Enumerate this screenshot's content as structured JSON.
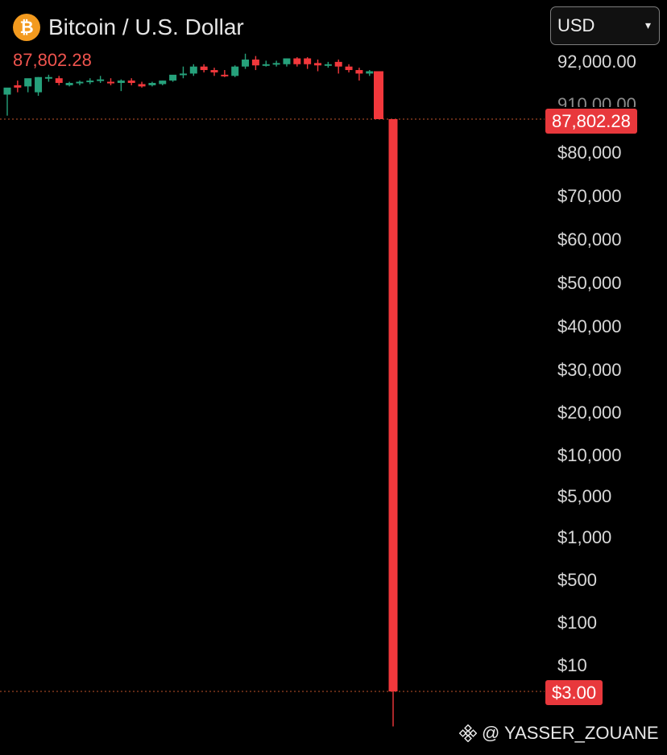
{
  "header": {
    "pair_name": "Bitcoin / U.S. Dollar",
    "last_price": "87,802.28",
    "coin_icon": "bitcoin-icon",
    "coin_symbol": "₿"
  },
  "currency_selector": {
    "value": "USD",
    "icon": "chevron-down-icon"
  },
  "price_axis": {
    "labels": [
      "92,000.00",
      "$80,000",
      "$70,000",
      "$60,000",
      "$50,000",
      "$40,000",
      "$30,000",
      "$20,000",
      "$10,000",
      "$5,000",
      "$1,000",
      "$500",
      "$100",
      "$10"
    ],
    "partial_label": "910,00.00"
  },
  "price_tags": {
    "current": "87,802.28",
    "low": "$3.00"
  },
  "watermark": {
    "text": "@ YASSER_ZOUANE",
    "icon": "binance-icon"
  },
  "colors": {
    "up": "#26a17b",
    "down": "#f2383c",
    "price_line": "#c2542d",
    "background": "#000000",
    "accent_coin": "#f39a1e"
  },
  "chart_data": {
    "type": "candlestick",
    "price_min": 87802.28,
    "crash_low": 3.0,
    "candles": [
      {
        "o": 89900,
        "h": 90200,
        "c": 90500,
        "l": 88100
      },
      {
        "o": 90700,
        "h": 91100,
        "c": 90500,
        "l": 90100
      },
      {
        "o": 90600,
        "h": 91200,
        "c": 91300,
        "l": 90100
      },
      {
        "o": 90100,
        "h": 91400,
        "c": 91400,
        "l": 89800
      },
      {
        "o": 91400,
        "h": 91600,
        "c": 91400,
        "l": 91000
      },
      {
        "o": 91300,
        "h": 91500,
        "c": 90900,
        "l": 90700
      },
      {
        "o": 90700,
        "h": 91000,
        "c": 90900,
        "l": 90600
      },
      {
        "o": 90900,
        "h": 91100,
        "c": 91000,
        "l": 90700
      },
      {
        "o": 91000,
        "h": 91300,
        "c": 91100,
        "l": 90800
      },
      {
        "o": 91100,
        "h": 91500,
        "c": 91200,
        "l": 90900
      },
      {
        "o": 91000,
        "h": 91300,
        "c": 90900,
        "l": 90700
      },
      {
        "o": 90900,
        "h": 91200,
        "c": 91100,
        "l": 90200
      },
      {
        "o": 91100,
        "h": 91300,
        "c": 90900,
        "l": 90700
      },
      {
        "o": 90800,
        "h": 91000,
        "c": 90600,
        "l": 90500
      },
      {
        "o": 90700,
        "h": 91000,
        "c": 90900,
        "l": 90600
      },
      {
        "o": 90800,
        "h": 91100,
        "c": 91100,
        "l": 90700
      },
      {
        "o": 91100,
        "h": 91400,
        "c": 91600,
        "l": 91000
      },
      {
        "o": 91700,
        "h": 92300,
        "c": 91700,
        "l": 91300
      },
      {
        "o": 91700,
        "h": 92500,
        "c": 92300,
        "l": 91500
      },
      {
        "o": 92300,
        "h": 92500,
        "c": 92000,
        "l": 91800
      },
      {
        "o": 92000,
        "h": 92200,
        "c": 91800,
        "l": 91500
      },
      {
        "o": 91600,
        "h": 92000,
        "c": 91500,
        "l": 91400
      },
      {
        "o": 91500,
        "h": 92400,
        "c": 92300,
        "l": 91400
      },
      {
        "o": 92300,
        "h": 93400,
        "c": 92900,
        "l": 92100
      },
      {
        "o": 92900,
        "h": 93200,
        "c": 92400,
        "l": 92000
      },
      {
        "o": 92500,
        "h": 92800,
        "c": 92500,
        "l": 92300
      },
      {
        "o": 92500,
        "h": 92800,
        "c": 92600,
        "l": 92300
      },
      {
        "o": 92500,
        "h": 93000,
        "c": 93000,
        "l": 92300
      },
      {
        "o": 93000,
        "h": 93100,
        "c": 92500,
        "l": 92300
      },
      {
        "o": 93000,
        "h": 93100,
        "c": 92500,
        "l": 92100
      },
      {
        "o": 92600,
        "h": 92900,
        "c": 92400,
        "l": 91900
      },
      {
        "o": 92500,
        "h": 92700,
        "c": 92500,
        "l": 92200
      },
      {
        "o": 92700,
        "h": 92900,
        "c": 92300,
        "l": 91700
      },
      {
        "o": 92300,
        "h": 92500,
        "c": 92000,
        "l": 91800
      },
      {
        "o": 92000,
        "h": 92200,
        "c": 91700,
        "l": 91100
      },
      {
        "o": 91700,
        "h": 92000,
        "c": 91900,
        "l": 91500
      },
      {
        "o": 91900,
        "h": 91900,
        "c": 87802.28,
        "l": 87802.28
      },
      {
        "o": 87802.28,
        "h": 87802.28,
        "c": 3.0,
        "l": 1.6
      }
    ]
  }
}
